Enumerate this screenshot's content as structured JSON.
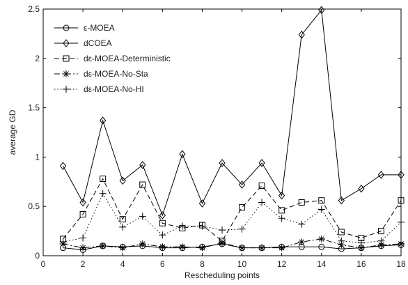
{
  "chart_data": {
    "type": "line",
    "xlabel": "Rescheduling points",
    "ylabel": "average GD",
    "xlim": [
      0,
      18
    ],
    "ylim": [
      0,
      2.5
    ],
    "xticks": [
      "0",
      "2",
      "4",
      "6",
      "8",
      "10",
      "12",
      "14",
      "16",
      "18"
    ],
    "yticks": [
      "0",
      "0.5",
      "1",
      "1.5",
      "2",
      "2.5"
    ],
    "grid": false,
    "legend_position": "top-left",
    "x": [
      1,
      2,
      3,
      4,
      5,
      6,
      7,
      8,
      9,
      10,
      11,
      12,
      13,
      14,
      15,
      16,
      17,
      18
    ],
    "series": [
      {
        "name": "ε-MOEA",
        "line": "solid",
        "marker": "circle",
        "values": [
          0.08,
          0.06,
          0.1,
          0.09,
          0.1,
          0.08,
          0.08,
          0.09,
          0.12,
          0.08,
          0.08,
          0.09,
          0.09,
          0.09,
          0.07,
          0.08,
          0.1,
          0.11
        ]
      },
      {
        "name": "dCOEA",
        "line": "solid",
        "marker": "diamond",
        "values": [
          0.91,
          0.54,
          1.37,
          0.76,
          0.92,
          0.41,
          1.03,
          0.53,
          0.94,
          0.72,
          0.94,
          0.61,
          2.24,
          2.49,
          0.56,
          0.68,
          0.82,
          0.82
        ]
      },
      {
        "name": "dε-MOEA-Deterministic",
        "line": "dashed",
        "marker": "square",
        "values": [
          0.17,
          0.42,
          0.78,
          0.37,
          0.72,
          0.33,
          0.28,
          0.31,
          0.15,
          0.49,
          0.71,
          0.46,
          0.54,
          0.56,
          0.24,
          0.18,
          0.25,
          0.56
        ]
      },
      {
        "name": "dε-MOEA-No-Sta",
        "line": "dashdot",
        "marker": "star",
        "values": [
          0.12,
          0.08,
          0.1,
          0.08,
          0.12,
          0.09,
          0.09,
          0.08,
          0.13,
          0.08,
          0.08,
          0.08,
          0.14,
          0.17,
          0.11,
          0.08,
          0.11,
          0.12
        ]
      },
      {
        "name": "dε-MOEA-No-HI",
        "line": "dotted",
        "marker": "plus",
        "values": [
          0.14,
          0.18,
          0.63,
          0.29,
          0.4,
          0.21,
          0.3,
          0.3,
          0.26,
          0.27,
          0.54,
          0.38,
          0.32,
          0.47,
          0.15,
          0.13,
          0.15,
          0.34
        ]
      }
    ]
  }
}
